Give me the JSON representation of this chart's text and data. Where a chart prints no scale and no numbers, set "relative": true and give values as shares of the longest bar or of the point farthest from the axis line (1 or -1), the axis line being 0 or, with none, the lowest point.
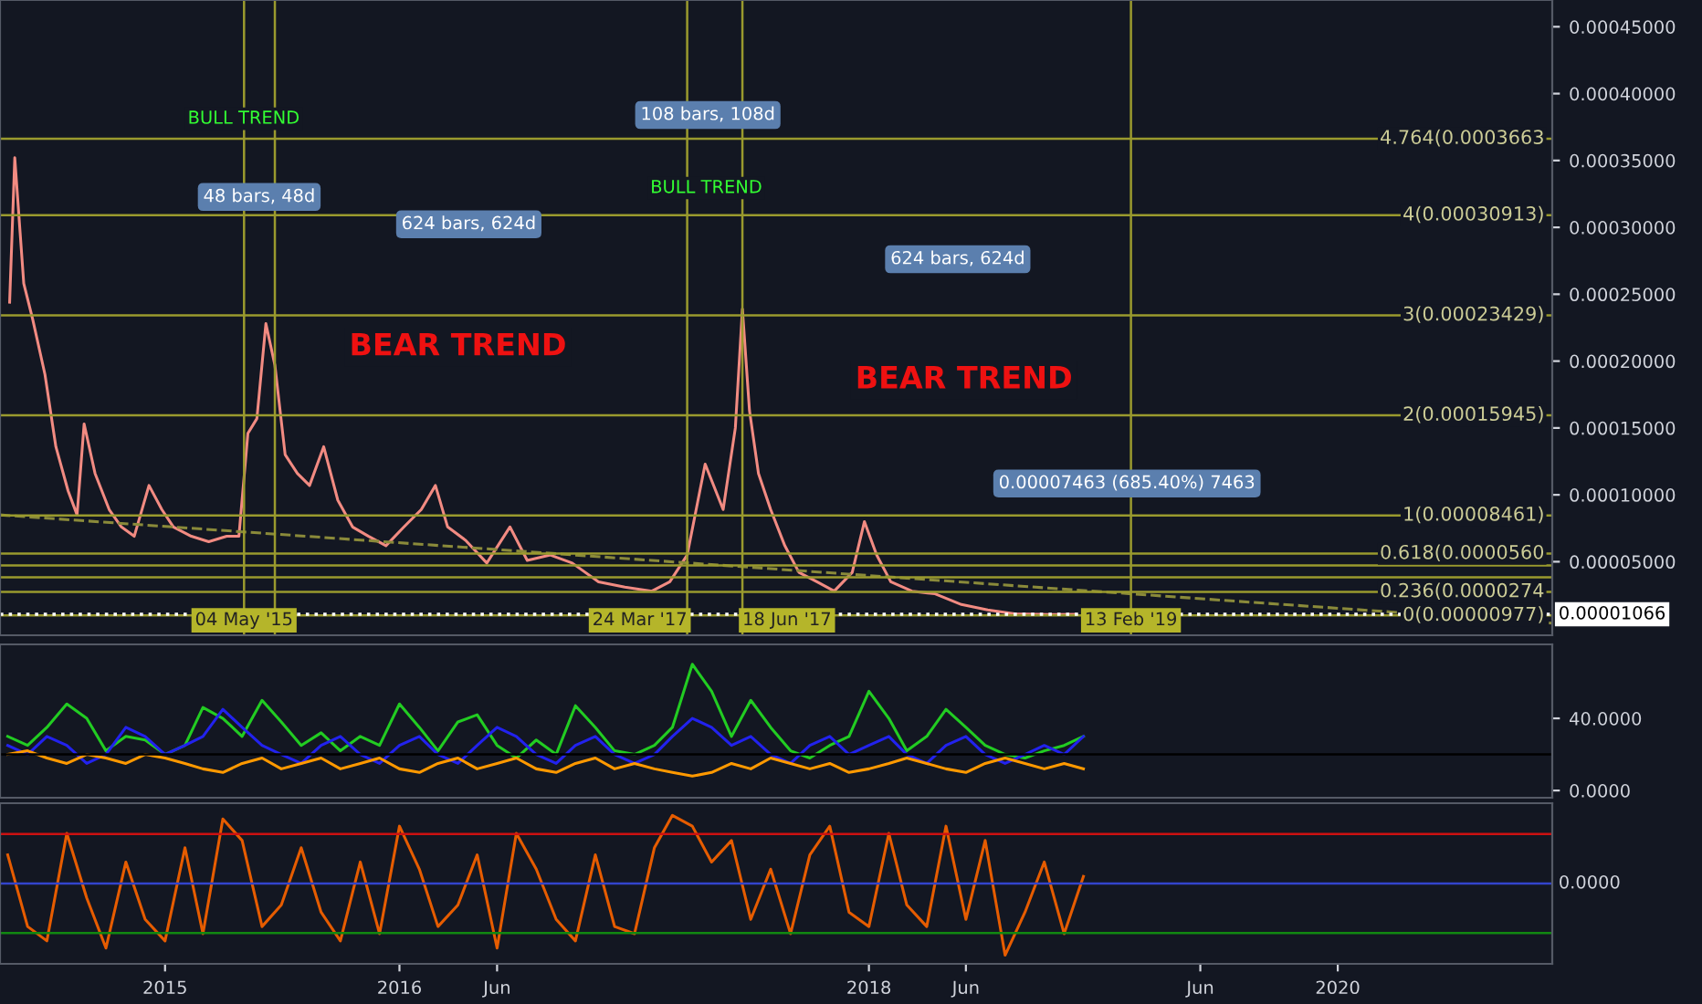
{
  "chart_data": [
    {
      "type": "line",
      "xlim": [
        "2014-04-19",
        "2020-11-30"
      ],
      "ylim": [
        -5e-06,
        0.00047
      ],
      "yticks": [
        {
          "value": 5e-05,
          "label": "0.00005000"
        },
        {
          "value": 0.0001,
          "label": "0.00010000"
        },
        {
          "value": 0.00015,
          "label": "0.00015000"
        },
        {
          "value": 0.0002,
          "label": "0.00020000"
        },
        {
          "value": 0.00025,
          "label": "0.00025000"
        },
        {
          "value": 0.0003,
          "label": "0.00030000"
        },
        {
          "value": 0.00035,
          "label": "0.00035000"
        },
        {
          "value": 0.0004,
          "label": "0.00040000"
        },
        {
          "value": 0.00045,
          "label": "0.00045000"
        }
      ],
      "tick_labels": "y",
      "grid": false,
      "series": [
        {
          "color": "#f28b82",
          "line_style": "solid",
          "x": [
            "2014-05-04",
            "2014-05-12",
            "2014-05-26",
            "2014-06-09",
            "2014-06-28",
            "2014-07-15",
            "2014-08-03",
            "2014-08-17",
            "2014-08-28",
            "2014-09-14",
            "2014-10-06",
            "2014-10-25",
            "2014-11-14",
            "2014-12-07",
            "2014-12-27",
            "2015-01-14",
            "2015-02-11",
            "2015-03-10",
            "2015-04-07",
            "2015-04-26",
            "2015-05-10",
            "2015-05-24",
            "2015-06-07",
            "2015-06-21",
            "2015-07-07",
            "2015-07-26",
            "2015-08-14",
            "2015-09-05",
            "2015-09-27",
            "2015-10-20",
            "2015-11-14",
            "2015-12-11",
            "2016-01-08",
            "2016-02-04",
            "2016-02-26",
            "2016-03-16",
            "2016-04-13",
            "2016-05-16",
            "2016-06-21",
            "2016-07-18",
            "2016-08-23",
            "2016-09-26",
            "2016-11-06",
            "2016-12-17",
            "2017-01-28",
            "2017-02-25",
            "2017-03-24",
            "2017-04-21",
            "2017-05-19",
            "2017-06-07",
            "2017-06-18",
            "2017-06-29",
            "2017-07-13",
            "2017-08-01",
            "2017-08-23",
            "2017-09-14",
            "2017-10-12",
            "2017-11-08",
            "2017-12-06",
            "2017-12-25",
            "2018-01-13",
            "2018-02-04",
            "2018-03-09",
            "2018-04-14",
            "2018-05-25",
            "2018-07-05",
            "2018-08-16",
            "2018-10-10",
            "2018-11-20"
          ],
          "values": [
            0.000244,
            0.000352,
            0.000258,
            0.000231,
            0.00019,
            0.000136,
            0.000103,
            8.5e-05,
            0.000153,
            0.000116,
            8.9e-05,
            7.6e-05,
            6.9e-05,
            0.000107,
            8.9e-05,
            7.6e-05,
            6.9e-05,
            6.5e-05,
            6.9e-05,
            6.9e-05,
            0.000146,
            0.000157,
            0.000228,
            0.000197,
            0.00013,
            0.000116,
            0.000107,
            0.000136,
            9.6e-05,
            7.6e-05,
            6.9e-05,
            6.2e-05,
            7.6e-05,
            8.9e-05,
            0.000107,
            7.6e-05,
            6.6e-05,
            4.9e-05,
            7.6e-05,
            5.1e-05,
            5.5e-05,
            4.9e-05,
            3.5e-05,
            3.1e-05,
            2.8e-05,
            3.5e-05,
            5.5e-05,
            0.000123,
            8.9e-05,
            0.00015,
            0.000239,
            0.000163,
            0.000116,
            8.9e-05,
            6.2e-05,
            4.2e-05,
            3.5e-05,
            2.8e-05,
            4.2e-05,
            8e-05,
            5.5e-05,
            3.5e-05,
            2.8e-05,
            2.6e-05,
            1.8e-05,
            1.4e-05,
            1.1e-05,
            1.05e-05,
            1.07e-05
          ]
        },
        {
          "color": "#8a8a3a",
          "line_style": "dashed",
          "x": [
            "2014-04-19",
            "2020-11-30"
          ],
          "values": [
            8.5e-05,
            4e-06
          ]
        }
      ],
      "ref_lines": [
        {
          "axis": "y",
          "value": 0.00036631,
          "label": "4.764(0.0003663",
          "color": "#9a9a2e",
          "line_style": "solid"
        },
        {
          "axis": "y",
          "value": 0.00030913,
          "label": "4(0.00030913)",
          "color": "#9a9a2e",
          "line_style": "solid"
        },
        {
          "axis": "y",
          "value": 0.00023429,
          "label": "3(0.00023429)",
          "color": "#9a9a2e",
          "line_style": "solid"
        },
        {
          "axis": "y",
          "value": 0.00015945,
          "label": "2(0.00015945)",
          "color": "#9a9a2e",
          "line_style": "solid"
        },
        {
          "axis": "y",
          "value": 8.461e-05,
          "label": "1(0.00008461)",
          "color": "#9a9a2e",
          "line_style": "solid"
        },
        {
          "axis": "y",
          "value": 5.602e-05,
          "label": "0.618(0.0000560",
          "color": "#9a9a2e",
          "line_style": "solid"
        },
        {
          "axis": "y",
          "value": 4.719e-05,
          "label": null,
          "color": "#9a9a2e",
          "line_style": "solid"
        },
        {
          "axis": "y",
          "value": 3.836e-05,
          "label": null,
          "color": "#9a9a2e",
          "line_style": "solid"
        },
        {
          "axis": "y",
          "value": 2.743e-05,
          "label": "0.236(0.0000274",
          "color": "#9a9a2e",
          "line_style": "solid"
        },
        {
          "axis": "y",
          "value": 9.77e-06,
          "label": "0(0.00000977)",
          "color": "#9a9a2e",
          "line_style": "solid"
        },
        {
          "axis": "y",
          "value": 1.066e-05,
          "label": "0.00001066",
          "color": "#ffffff",
          "line_style": "dotted"
        },
        {
          "axis": "x",
          "value": "2015-05-04",
          "label": "04 May '15",
          "color": "#9a9a2e",
          "line_style": "solid"
        },
        {
          "axis": "x",
          "value": "2015-06-21",
          "label": null,
          "color": "#9a9a2e",
          "line_style": "solid"
        },
        {
          "axis": "x",
          "value": "2017-03-24",
          "label": "24 Mar '17",
          "color": "#9a9a2e",
          "line_style": "solid"
        },
        {
          "axis": "x",
          "value": "2017-06-18",
          "label": "18 Jun '17",
          "color": "#9a9a2e",
          "line_style": "solid"
        },
        {
          "axis": "x",
          "value": "2019-02-13",
          "label": "13 Feb '19",
          "color": "#9a9a2e",
          "line_style": "solid"
        }
      ],
      "annotations": [
        "BULL TREND",
        "BULL TREND",
        "BEAR TREND",
        "BEAR TREND",
        "48 bars, 48d",
        "624 bars, 624d",
        "108 bars, 108d",
        "624 bars, 624d",
        "0.00007463 (685.40%) 7463"
      ]
    },
    {
      "type": "line",
      "xlim": [
        "2014-04-19",
        "2020-11-30"
      ],
      "ylim": [
        -4,
        81
      ],
      "yticks": [
        {
          "value": 0,
          "label": "0.0000"
        },
        {
          "value": 40,
          "label": "40.0000"
        }
      ],
      "tick_labels": "y",
      "grid": false,
      "ref_lines": [
        {
          "axis": "y",
          "value": 20,
          "label": null,
          "color": "#000000",
          "line_style": "solid"
        }
      ],
      "series": [
        {
          "color": "#22cc22",
          "line_style": "solid",
          "values": [
            30,
            25,
            35,
            48,
            40,
            22,
            30,
            28,
            20,
            25,
            46,
            40,
            30,
            50,
            38,
            25,
            32,
            22,
            30,
            25,
            48,
            35,
            22,
            38,
            42,
            25,
            18,
            28,
            20,
            47,
            35,
            22,
            20,
            25,
            35,
            70,
            55,
            30,
            50,
            35,
            22,
            18,
            25,
            30,
            55,
            40,
            22,
            30,
            45,
            35,
            25,
            20,
            18,
            22,
            25,
            30
          ]
        },
        {
          "color": "#2222ee",
          "line_style": "solid",
          "values": [
            25,
            20,
            30,
            25,
            15,
            20,
            35,
            30,
            20,
            25,
            30,
            45,
            35,
            25,
            20,
            15,
            25,
            30,
            20,
            15,
            25,
            30,
            20,
            15,
            25,
            35,
            30,
            20,
            15,
            25,
            30,
            20,
            15,
            20,
            30,
            40,
            35,
            25,
            30,
            20,
            15,
            25,
            30,
            20,
            25,
            30,
            20,
            15,
            25,
            30,
            20,
            15,
            20,
            25,
            20,
            30
          ]
        },
        {
          "color": "#ff9900",
          "line_style": "solid",
          "values": [
            20,
            22,
            18,
            15,
            20,
            18,
            15,
            20,
            18,
            15,
            12,
            10,
            15,
            18,
            12,
            15,
            18,
            12,
            15,
            18,
            12,
            10,
            15,
            18,
            12,
            15,
            18,
            12,
            10,
            15,
            18,
            12,
            15,
            12,
            10,
            8,
            10,
            15,
            12,
            18,
            15,
            12,
            15,
            10,
            12,
            15,
            18,
            15,
            12,
            10,
            15,
            18,
            15,
            12,
            15,
            12
          ]
        }
      ],
      "x": [
        "2014-05",
        "2014-06",
        "2014-07",
        "2014-08",
        "2014-09",
        "2014-10",
        "2014-11",
        "2014-12",
        "2015-01",
        "2015-02",
        "2015-03",
        "2015-04",
        "2015-05",
        "2015-06",
        "2015-07",
        "2015-08",
        "2015-09",
        "2015-10",
        "2015-11",
        "2015-12",
        "2016-01",
        "2016-02",
        "2016-03",
        "2016-04",
        "2016-05",
        "2016-06",
        "2016-07",
        "2016-08",
        "2016-09",
        "2016-10",
        "2016-11",
        "2016-12",
        "2017-01",
        "2017-02",
        "2017-03",
        "2017-04",
        "2017-05",
        "2017-06",
        "2017-07",
        "2017-08",
        "2017-09",
        "2017-10",
        "2017-11",
        "2017-12",
        "2018-01",
        "2018-02",
        "2018-03",
        "2018-04",
        "2018-05",
        "2018-06",
        "2018-07",
        "2018-08",
        "2018-09",
        "2018-10",
        "2018-11",
        "2018-12"
      ]
    },
    {
      "type": "line",
      "relative": true,
      "xlim": [
        "2014-04-19",
        "2020-11-30"
      ],
      "xticks": [
        {
          "value": "2015-01-01",
          "label": "2015"
        },
        {
          "value": "2016-01-01",
          "label": "2016"
        },
        {
          "value": "2016-06-01",
          "label": "Jun"
        },
        {
          "value": "2018-01-01",
          "label": "2018"
        },
        {
          "value": "2018-06-01",
          "label": "Jun"
        },
        {
          "value": "2019-06-01",
          "label": "Jun"
        },
        {
          "value": "2020-01-01",
          "label": "2020"
        }
      ],
      "grid": false,
      "ref_lines": [
        {
          "axis": "y",
          "value": 0.69,
          "label": null,
          "color": "#cc1111",
          "line_style": "solid"
        },
        {
          "axis": "y",
          "value": 0,
          "label": "0.0000",
          "color": "#3344cc",
          "line_style": "solid"
        },
        {
          "axis": "y",
          "value": -0.69,
          "label": null,
          "color": "#118811",
          "line_style": "solid"
        }
      ],
      "series": [
        {
          "color": "#e65c00",
          "line_style": "solid",
          "values": [
            0.4,
            -0.6,
            -0.8,
            0.7,
            -0.2,
            -0.9,
            0.3,
            -0.5,
            -0.8,
            0.5,
            -0.7,
            0.9,
            0.6,
            -0.6,
            -0.3,
            0.5,
            -0.4,
            -0.8,
            0.3,
            -0.7,
            0.8,
            0.2,
            -0.6,
            -0.3,
            0.4,
            -0.9,
            0.7,
            0.2,
            -0.5,
            -0.8,
            0.4,
            -0.6,
            -0.7,
            0.5,
            0.95,
            0.8,
            0.3,
            0.6,
            -0.5,
            0.2,
            -0.7,
            0.4,
            0.8,
            -0.4,
            -0.6,
            0.7,
            -0.3,
            -0.6,
            0.8,
            -0.5,
            0.6,
            -1,
            -0.4,
            0.3,
            -0.7,
            0.1
          ]
        }
      ],
      "x": [
        "2014-05",
        "2014-06",
        "2014-07",
        "2014-08",
        "2014-09",
        "2014-10",
        "2014-11",
        "2014-12",
        "2015-01",
        "2015-02",
        "2015-03",
        "2015-04",
        "2015-05",
        "2015-06",
        "2015-07",
        "2015-08",
        "2015-09",
        "2015-10",
        "2015-11",
        "2015-12",
        "2016-01",
        "2016-02",
        "2016-03",
        "2016-04",
        "2016-05",
        "2016-06",
        "2016-07",
        "2016-08",
        "2016-09",
        "2016-10",
        "2016-11",
        "2016-12",
        "2017-01",
        "2017-02",
        "2017-03",
        "2017-04",
        "2017-05",
        "2017-06",
        "2017-07",
        "2017-08",
        "2017-09",
        "2017-10",
        "2017-11",
        "2017-12",
        "2018-01",
        "2018-02",
        "2018-03",
        "2018-04",
        "2018-05",
        "2018-06",
        "2018-07",
        "2018-08",
        "2018-09",
        "2018-10",
        "2018-11",
        "2018-12"
      ]
    }
  ]
}
